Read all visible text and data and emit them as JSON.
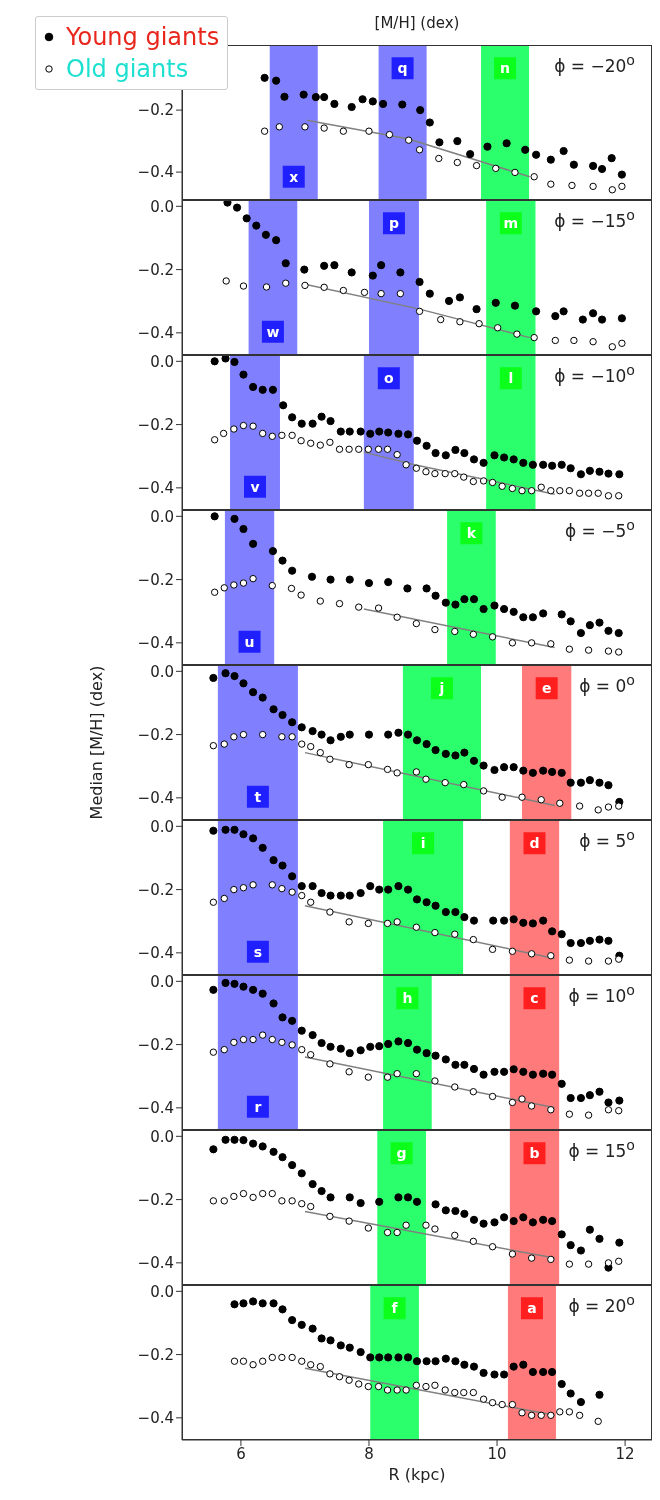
{
  "chart_data": [
    {
      "type": "scatter",
      "title": "[M/H] (dex)",
      "legend": "top left",
      "marker": "circle",
      "xlim": [
        5.08,
        12.42
      ],
      "xticks": [
        6,
        8,
        10,
        12
      ],
      "ylim": [
        -0.49,
        0.01
      ],
      "yticks": [
        {
          "value": -0.2,
          "label": "−0.2"
        },
        {
          "value": -0.4,
          "label": "−0.4"
        }
      ],
      "tick_labels": "y",
      "annotations": [
        "ϕ = −20$^{o}$"
      ],
      "bands": [
        {
          "axis": "x",
          "from": 6.45,
          "to": 7.2,
          "label": "x",
          "color": "#8080ff"
        },
        {
          "axis": "x",
          "from": 8.15,
          "to": 8.9,
          "label": "q",
          "color": "#8080ff"
        },
        {
          "axis": "x",
          "from": 9.75,
          "to": 10.5,
          "label": "n",
          "color": "#2bff6b"
        }
      ],
      "series": [
        {
          "name": "Young giants",
          "type": "scatter",
          "color": "#000000",
          "x": [
            6.37,
            6.55,
            6.68,
            6.98,
            7.17,
            7.3,
            7.46,
            7.73,
            7.9,
            8.06,
            8.22,
            8.52,
            8.8,
            8.95,
            9.1,
            9.38,
            9.58,
            9.85,
            10.15,
            10.44,
            10.61,
            10.84,
            11.04,
            11.2,
            11.5,
            11.64,
            11.79,
            11.95
          ],
          "values": [
            -0.096,
            -0.105,
            -0.157,
            -0.15,
            -0.158,
            -0.158,
            -0.18,
            -0.19,
            -0.165,
            -0.172,
            -0.18,
            -0.182,
            -0.2,
            -0.24,
            -0.304,
            -0.3,
            -0.342,
            -0.318,
            -0.307,
            -0.328,
            -0.344,
            -0.36,
            -0.332,
            -0.376,
            -0.38,
            -0.39,
            -0.355,
            -0.408
          ]
        },
        {
          "name": "Old giants",
          "type": "scatter",
          "color": "#000000",
          "x": [
            6.37,
            6.6,
            7.0,
            7.3,
            7.6,
            8.0,
            8.32,
            8.62,
            8.79,
            9.09,
            9.38,
            9.68,
            9.98,
            10.28,
            10.58,
            10.84,
            11.17,
            11.5,
            11.8,
            11.95
          ],
          "values": [
            -0.268,
            -0.254,
            -0.254,
            -0.258,
            -0.268,
            -0.268,
            -0.279,
            -0.297,
            -0.328,
            -0.356,
            -0.369,
            -0.379,
            -0.388,
            -0.401,
            -0.415,
            -0.439,
            -0.443,
            -0.446,
            -0.457,
            -0.446
          ]
        },
        {
          "type": "line",
          "marker": "none",
          "color": "#808080",
          "x": [
            7.03,
            8.62,
            10.51
          ],
          "values": [
            -0.233,
            -0.293,
            -0.415
          ]
        }
      ]
    },
    {
      "type": "scatter",
      "marker": "circle",
      "xlim": [
        5.08,
        12.42
      ],
      "xticks": [
        6,
        8,
        10,
        12
      ],
      "ylim": [
        -0.47,
        0.02
      ],
      "yticks": [
        {
          "value": 0,
          "label": "0.0"
        },
        {
          "value": -0.2,
          "label": "−0.2"
        },
        {
          "value": -0.4,
          "label": "−0.4"
        }
      ],
      "tick_labels": "y",
      "annotations": [
        "ϕ = −15$^{o}$"
      ],
      "bands": [
        {
          "axis": "x",
          "from": 6.12,
          "to": 6.88,
          "label": "w",
          "color": "#8080ff"
        },
        {
          "axis": "x",
          "from": 8.0,
          "to": 8.78,
          "label": "p",
          "color": "#8080ff"
        },
        {
          "axis": "x",
          "from": 9.83,
          "to": 10.6,
          "label": "m",
          "color": "#2bff6b"
        }
      ],
      "series": [
        {
          "type": "scatter",
          "color": "#000000",
          "x": [
            5.79,
            5.94,
            6.09,
            6.24,
            6.39,
            6.55,
            6.7,
            6.99,
            7.3,
            7.46,
            7.73,
            8.06,
            8.19,
            8.49,
            8.79,
            8.95,
            9.25,
            9.42,
            9.68,
            9.98,
            10.28,
            10.61,
            10.91,
            11.04,
            11.34,
            11.5,
            11.64,
            11.95
          ],
          "values": [
            0.012,
            -0.004,
            -0.038,
            -0.061,
            -0.09,
            -0.107,
            -0.18,
            -0.2,
            -0.188,
            -0.186,
            -0.209,
            -0.219,
            -0.186,
            -0.209,
            -0.239,
            -0.276,
            -0.299,
            -0.288,
            -0.325,
            -0.305,
            -0.314,
            -0.332,
            -0.347,
            -0.332,
            -0.358,
            -0.338,
            -0.358,
            -0.354
          ]
        },
        {
          "type": "scatter",
          "color": "#000000",
          "x": [
            5.77,
            6.04,
            6.4,
            6.7,
            7.0,
            7.3,
            7.6,
            7.93,
            8.19,
            8.49,
            8.79,
            9.12,
            9.42,
            9.72,
            10.01,
            10.31,
            10.58,
            10.91,
            11.2,
            11.5,
            11.8,
            11.95
          ],
          "values": [
            -0.236,
            -0.252,
            -0.255,
            -0.243,
            -0.25,
            -0.256,
            -0.266,
            -0.272,
            -0.276,
            -0.276,
            -0.332,
            -0.358,
            -0.365,
            -0.371,
            -0.384,
            -0.404,
            -0.415,
            -0.424,
            -0.424,
            -0.428,
            -0.444,
            -0.433
          ]
        },
        {
          "type": "line",
          "marker": "none",
          "color": "#808080",
          "x": [
            7.0,
            8.79,
            10.51
          ],
          "values": [
            -0.246,
            -0.325,
            -0.415
          ]
        }
      ]
    },
    {
      "type": "scatter",
      "marker": "circle",
      "xlim": [
        5.08,
        12.42
      ],
      "xticks": [
        6,
        8,
        10,
        12
      ],
      "ylim": [
        -0.47,
        0.02
      ],
      "yticks": [
        {
          "value": 0,
          "label": "0.0"
        },
        {
          "value": -0.2,
          "label": "−0.2"
        },
        {
          "value": -0.4,
          "label": "−0.4"
        }
      ],
      "tick_labels": "y",
      "annotations": [
        "ϕ = −10$^{o}$"
      ],
      "bands": [
        {
          "axis": "x",
          "from": 5.83,
          "to": 6.61,
          "label": "v",
          "color": "#8080ff"
        },
        {
          "axis": "x",
          "from": 7.92,
          "to": 8.7,
          "label": "o",
          "color": "#8080ff"
        },
        {
          "axis": "x",
          "from": 9.83,
          "to": 10.6,
          "label": "l",
          "color": "#2bff6b"
        }
      ],
      "series": [
        {
          "type": "scatter",
          "color": "#000000",
          "x": [
            5.59,
            5.76,
            5.9,
            6.04,
            6.19,
            6.34,
            6.5,
            6.66,
            6.8,
            6.95,
            7.12,
            7.26,
            7.4,
            7.56,
            7.7,
            7.87,
            8.02,
            8.16,
            8.3,
            8.46,
            8.61,
            8.75,
            8.9,
            9.04,
            9.2,
            9.35,
            9.49,
            9.64,
            9.79,
            9.96,
            10.11,
            10.26,
            10.41,
            10.56,
            10.72,
            10.86,
            11.01,
            11.15,
            11.31,
            11.45,
            11.6,
            11.74,
            11.91
          ],
          "values": [
            0.0,
            0.009,
            -0.002,
            -0.042,
            -0.081,
            -0.09,
            -0.09,
            -0.139,
            -0.177,
            -0.197,
            -0.197,
            -0.175,
            -0.189,
            -0.222,
            -0.222,
            -0.222,
            -0.229,
            -0.222,
            -0.225,
            -0.229,
            -0.231,
            -0.251,
            -0.267,
            -0.29,
            -0.297,
            -0.28,
            -0.29,
            -0.31,
            -0.321,
            -0.297,
            -0.304,
            -0.31,
            -0.321,
            -0.327,
            -0.327,
            -0.33,
            -0.327,
            -0.338,
            -0.357,
            -0.346,
            -0.349,
            -0.355,
            -0.357
          ]
        },
        {
          "type": "scatter",
          "color": "#000000",
          "x": [
            5.59,
            5.73,
            5.89,
            6.04,
            6.19,
            6.34,
            6.49,
            6.64,
            6.8,
            6.94,
            7.09,
            7.24,
            7.39,
            7.54,
            7.69,
            7.84,
            7.99,
            8.15,
            8.29,
            8.44,
            8.58,
            8.74,
            8.89,
            9.03,
            9.19,
            9.34,
            9.48,
            9.63,
            9.79,
            9.93,
            10.08,
            10.24,
            10.39,
            10.54,
            10.69,
            10.84,
            10.98,
            11.13,
            11.29,
            11.43,
            11.58,
            11.74,
            11.9
          ],
          "values": [
            -0.248,
            -0.228,
            -0.214,
            -0.203,
            -0.205,
            -0.228,
            -0.237,
            -0.234,
            -0.234,
            -0.251,
            -0.259,
            -0.265,
            -0.256,
            -0.278,
            -0.278,
            -0.278,
            -0.278,
            -0.278,
            -0.278,
            -0.295,
            -0.327,
            -0.338,
            -0.349,
            -0.355,
            -0.355,
            -0.355,
            -0.366,
            -0.38,
            -0.378,
            -0.383,
            -0.395,
            -0.402,
            -0.409,
            -0.409,
            -0.398,
            -0.409,
            -0.409,
            -0.409,
            -0.417,
            -0.417,
            -0.417,
            -0.425,
            -0.425
          ]
        },
        {
          "type": "line",
          "marker": "none",
          "color": "#808080",
          "x": [
            7.92,
            8.71,
            10.9
          ],
          "values": [
            -0.287,
            -0.327,
            -0.42
          ]
        }
      ]
    },
    {
      "type": "scatter",
      "marker": "circle",
      "xlim": [
        5.08,
        12.42
      ],
      "xticks": [
        6,
        8,
        10,
        12
      ],
      "ylim": [
        -0.47,
        0.02
      ],
      "yticks": [
        {
          "value": 0,
          "label": "0.0"
        },
        {
          "value": -0.2,
          "label": "−0.2"
        },
        {
          "value": -0.4,
          "label": "−0.4"
        }
      ],
      "tick_labels": "y",
      "annotations": [
        "ϕ = −5$^{o}$"
      ],
      "bands": [
        {
          "axis": "x",
          "from": 5.75,
          "to": 6.52,
          "label": "u",
          "color": "#8080ff"
        },
        {
          "axis": "x",
          "from": 9.22,
          "to": 9.98,
          "label": "k",
          "color": "#2bff6b"
        }
      ],
      "series": [
        {
          "type": "scatter",
          "color": "#000000",
          "x": [
            5.59,
            5.9,
            6.04,
            6.19,
            6.5,
            6.65,
            6.8,
            7.11,
            7.4,
            7.7,
            8.0,
            8.3,
            8.6,
            8.9,
            9.04,
            9.2,
            9.35,
            9.49,
            9.64,
            9.79,
            9.96,
            10.11,
            10.26,
            10.41,
            10.56,
            10.72,
            11.01,
            11.15,
            11.31,
            11.45,
            11.6,
            11.74,
            11.9
          ],
          "values": [
            0.0,
            -0.008,
            -0.04,
            -0.087,
            -0.11,
            -0.14,
            -0.172,
            -0.191,
            -0.2,
            -0.2,
            -0.211,
            -0.208,
            -0.228,
            -0.228,
            -0.251,
            -0.273,
            -0.279,
            -0.262,
            -0.262,
            -0.293,
            -0.282,
            -0.293,
            -0.302,
            -0.319,
            -0.319,
            -0.307,
            -0.31,
            -0.332,
            -0.369,
            -0.344,
            -0.336,
            -0.362,
            -0.369
          ]
        },
        {
          "type": "scatter",
          "color": "#000000",
          "x": [
            5.59,
            5.74,
            5.89,
            6.04,
            6.19,
            6.49,
            6.79,
            6.94,
            7.24,
            7.54,
            7.84,
            8.15,
            8.44,
            8.74,
            9.03,
            9.34,
            9.63,
            9.93,
            10.24,
            10.54,
            10.84,
            11.13,
            11.43,
            11.74,
            11.9
          ],
          "values": [
            -0.24,
            -0.226,
            -0.217,
            -0.211,
            -0.197,
            -0.219,
            -0.228,
            -0.249,
            -0.268,
            -0.276,
            -0.287,
            -0.29,
            -0.319,
            -0.339,
            -0.358,
            -0.364,
            -0.373,
            -0.381,
            -0.4,
            -0.4,
            -0.403,
            -0.42,
            -0.423,
            -0.426,
            -0.429
          ]
        },
        {
          "type": "line",
          "marker": "none",
          "color": "#808080",
          "x": [
            7.92,
            10.9
          ],
          "values": [
            -0.293,
            -0.415
          ]
        }
      ]
    },
    {
      "type": "scatter",
      "ylabel": "Median [M/H] (dex)",
      "marker": "circle",
      "xlim": [
        5.08,
        12.42
      ],
      "xticks": [
        6,
        8,
        10,
        12
      ],
      "ylim": [
        -0.47,
        0.02
      ],
      "yticks": [
        {
          "value": 0,
          "label": "0.0"
        },
        {
          "value": -0.2,
          "label": "−0.2"
        },
        {
          "value": -0.4,
          "label": "−0.4"
        }
      ],
      "tick_labels": "y",
      "annotations": [
        "ϕ = 0$^{o}$"
      ],
      "bands": [
        {
          "axis": "x",
          "from": 5.64,
          "to": 6.89,
          "label": "t",
          "color": "#8080ff"
        },
        {
          "axis": "x",
          "from": 8.53,
          "to": 9.75,
          "label": "j",
          "color": "#2bff6b"
        },
        {
          "axis": "x",
          "from": 10.39,
          "to": 11.16,
          "label": "e",
          "color": "#ff7a7a"
        }
      ],
      "series": [
        {
          "type": "scatter",
          "color": "#000000",
          "x": [
            5.57,
            5.76,
            5.9,
            6.04,
            6.19,
            6.34,
            6.51,
            6.65,
            6.8,
            6.95,
            7.12,
            7.26,
            7.4,
            7.56,
            7.7,
            8.0,
            8.3,
            8.46,
            8.61,
            8.75,
            8.9,
            9.04,
            9.2,
            9.35,
            9.49,
            9.64,
            9.79,
            9.96,
            10.11,
            10.26,
            10.41,
            10.56,
            10.72,
            10.86,
            11.01,
            11.15,
            11.31,
            11.45,
            11.6,
            11.74,
            11.91
          ],
          "values": [
            -0.021,
            -0.006,
            -0.015,
            -0.038,
            -0.066,
            -0.083,
            -0.12,
            -0.138,
            -0.161,
            -0.177,
            -0.189,
            -0.2,
            -0.218,
            -0.207,
            -0.2,
            -0.2,
            -0.2,
            -0.194,
            -0.2,
            -0.218,
            -0.23,
            -0.249,
            -0.261,
            -0.266,
            -0.257,
            -0.283,
            -0.298,
            -0.312,
            -0.303,
            -0.303,
            -0.314,
            -0.321,
            -0.314,
            -0.318,
            -0.321,
            -0.352,
            -0.352,
            -0.344,
            -0.352,
            -0.36,
            -0.413
          ]
        },
        {
          "type": "scatter",
          "color": "#000000",
          "x": [
            5.57,
            5.74,
            5.89,
            6.04,
            6.34,
            6.64,
            6.8,
            6.95,
            7.09,
            7.24,
            7.39,
            7.69,
            7.99,
            8.29,
            8.44,
            8.74,
            8.89,
            9.19,
            9.48,
            9.79,
            10.08,
            10.39,
            10.69,
            10.98,
            11.29,
            11.58,
            11.74,
            11.9
          ],
          "values": [
            -0.235,
            -0.23,
            -0.207,
            -0.2,
            -0.2,
            -0.207,
            -0.207,
            -0.23,
            -0.238,
            -0.257,
            -0.278,
            -0.295,
            -0.295,
            -0.31,
            -0.321,
            -0.318,
            -0.341,
            -0.352,
            -0.358,
            -0.378,
            -0.398,
            -0.398,
            -0.406,
            -0.417,
            -0.426,
            -0.438,
            -0.429,
            -0.426
          ]
        },
        {
          "type": "line",
          "marker": "none",
          "color": "#808080",
          "x": [
            7.0,
            10.9
          ],
          "values": [
            -0.257,
            -0.424
          ]
        }
      ]
    },
    {
      "type": "scatter",
      "marker": "circle",
      "xlim": [
        5.08,
        12.42
      ],
      "xticks": [
        6,
        8,
        10,
        12
      ],
      "ylim": [
        -0.47,
        0.02
      ],
      "yticks": [
        {
          "value": 0,
          "label": "0.0"
        },
        {
          "value": -0.2,
          "label": "−0.2"
        },
        {
          "value": -0.4,
          "label": "−0.4"
        }
      ],
      "tick_labels": "y",
      "annotations": [
        "ϕ = 5$^{o}$"
      ],
      "bands": [
        {
          "axis": "x",
          "from": 5.64,
          "to": 6.89,
          "label": "s",
          "color": "#8080ff"
        },
        {
          "axis": "x",
          "from": 8.22,
          "to": 9.47,
          "label": "i",
          "color": "#2bff6b"
        },
        {
          "axis": "x",
          "from": 10.2,
          "to": 10.97,
          "label": "d",
          "color": "#ff7a7a"
        }
      ],
      "series": [
        {
          "type": "scatter",
          "color": "#000000",
          "x": [
            5.57,
            5.76,
            5.9,
            6.04,
            6.19,
            6.34,
            6.51,
            6.65,
            6.8,
            6.95,
            7.12,
            7.26,
            7.4,
            7.56,
            7.7,
            7.87,
            8.02,
            8.16,
            8.3,
            8.46,
            8.61,
            8.75,
            8.9,
            9.04,
            9.2,
            9.35,
            9.49,
            9.64,
            9.94,
            10.11,
            10.26,
            10.41,
            10.56,
            10.72,
            10.86,
            11.01,
            11.15,
            11.31,
            11.45,
            11.6,
            11.74,
            11.91
          ],
          "values": [
            -0.014,
            -0.011,
            -0.011,
            -0.025,
            -0.038,
            -0.068,
            -0.107,
            -0.124,
            -0.158,
            -0.189,
            -0.189,
            -0.211,
            -0.219,
            -0.219,
            -0.219,
            -0.211,
            -0.189,
            -0.2,
            -0.2,
            -0.189,
            -0.2,
            -0.231,
            -0.24,
            -0.251,
            -0.271,
            -0.271,
            -0.287,
            -0.298,
            -0.298,
            -0.298,
            -0.294,
            -0.305,
            -0.307,
            -0.298,
            -0.332,
            -0.341,
            -0.369,
            -0.369,
            -0.362,
            -0.358,
            -0.362,
            -0.409
          ]
        },
        {
          "type": "scatter",
          "color": "#000000",
          "x": [
            5.57,
            5.74,
            5.89,
            6.04,
            6.19,
            6.49,
            6.64,
            6.8,
            6.95,
            7.09,
            7.39,
            7.69,
            7.99,
            8.29,
            8.44,
            8.74,
            9.03,
            9.34,
            9.63,
            9.93,
            10.24,
            10.54,
            10.84,
            11.13,
            11.43,
            11.74,
            11.9
          ],
          "values": [
            -0.24,
            -0.228,
            -0.2,
            -0.194,
            -0.185,
            -0.185,
            -0.197,
            -0.208,
            -0.219,
            -0.24,
            -0.271,
            -0.302,
            -0.307,
            -0.307,
            -0.302,
            -0.319,
            -0.336,
            -0.341,
            -0.358,
            -0.389,
            -0.395,
            -0.403,
            -0.409,
            -0.423,
            -0.426,
            -0.426,
            -0.42
          ]
        },
        {
          "type": "line",
          "marker": "none",
          "color": "#808080",
          "x": [
            7.0,
            10.9
          ],
          "values": [
            -0.251,
            -0.418
          ]
        }
      ]
    },
    {
      "type": "scatter",
      "marker": "circle",
      "xlim": [
        5.08,
        12.42
      ],
      "xticks": [
        6,
        8,
        10,
        12
      ],
      "ylim": [
        -0.47,
        0.02
      ],
      "yticks": [
        {
          "value": 0,
          "label": "0.0"
        },
        {
          "value": -0.2,
          "label": "−0.2"
        },
        {
          "value": -0.4,
          "label": "−0.4"
        }
      ],
      "tick_labels": "y",
      "annotations": [
        "ϕ = 10$^{o}$"
      ],
      "bands": [
        {
          "axis": "x",
          "from": 5.64,
          "to": 6.89,
          "label": "r",
          "color": "#8080ff"
        },
        {
          "axis": "x",
          "from": 8.22,
          "to": 8.98,
          "label": "h",
          "color": "#2bff6b"
        },
        {
          "axis": "x",
          "from": 10.2,
          "to": 10.97,
          "label": "c",
          "color": "#ff7a7a"
        }
      ],
      "series": [
        {
          "type": "scatter",
          "color": "#000000",
          "x": [
            5.57,
            5.76,
            5.9,
            6.04,
            6.19,
            6.34,
            6.51,
            6.65,
            6.8,
            6.95,
            7.12,
            7.26,
            7.4,
            7.56,
            7.7,
            7.87,
            8.02,
            8.16,
            8.3,
            8.46,
            8.61,
            8.75,
            8.9,
            9.04,
            9.2,
            9.35,
            9.49,
            9.64,
            9.79,
            9.96,
            10.11,
            10.26,
            10.41,
            10.56,
            10.72,
            10.86,
            11.01,
            11.15,
            11.31,
            11.45,
            11.6,
            11.74,
            11.91
          ],
          "values": [
            -0.027,
            -0.005,
            -0.008,
            -0.017,
            -0.027,
            -0.039,
            -0.07,
            -0.114,
            -0.125,
            -0.156,
            -0.17,
            -0.195,
            -0.207,
            -0.213,
            -0.227,
            -0.218,
            -0.207,
            -0.205,
            -0.198,
            -0.19,
            -0.195,
            -0.216,
            -0.227,
            -0.235,
            -0.247,
            -0.264,
            -0.264,
            -0.277,
            -0.295,
            -0.286,
            -0.286,
            -0.278,
            -0.286,
            -0.295,
            -0.292,
            -0.295,
            -0.324,
            -0.369,
            -0.369,
            -0.36,
            -0.349,
            -0.383,
            -0.377
          ]
        },
        {
          "type": "scatter",
          "color": "#000000",
          "x": [
            5.57,
            5.74,
            5.89,
            6.04,
            6.19,
            6.34,
            6.49,
            6.64,
            6.8,
            6.95,
            7.09,
            7.39,
            7.69,
            7.99,
            8.29,
            8.44,
            8.74,
            9.03,
            9.34,
            9.63,
            9.93,
            10.24,
            10.39,
            10.54,
            10.84,
            11.13,
            11.43,
            11.74,
            11.9
          ],
          "values": [
            -0.224,
            -0.216,
            -0.193,
            -0.184,
            -0.184,
            -0.17,
            -0.184,
            -0.193,
            -0.201,
            -0.216,
            -0.232,
            -0.261,
            -0.286,
            -0.303,
            -0.303,
            -0.292,
            -0.292,
            -0.315,
            -0.334,
            -0.349,
            -0.364,
            -0.383,
            -0.372,
            -0.394,
            -0.406,
            -0.42,
            -0.423,
            -0.406,
            -0.409
          ]
        },
        {
          "type": "line",
          "marker": "none",
          "color": "#808080",
          "x": [
            7.0,
            10.9
          ],
          "values": [
            -0.239,
            -0.4
          ]
        }
      ]
    },
    {
      "type": "scatter",
      "marker": "circle",
      "xlim": [
        5.08,
        12.42
      ],
      "xticks": [
        6,
        8,
        10,
        12
      ],
      "ylim": [
        -0.47,
        0.02
      ],
      "yticks": [
        {
          "value": 0,
          "label": "0.0"
        },
        {
          "value": -0.2,
          "label": "−0.2"
        },
        {
          "value": -0.4,
          "label": "−0.4"
        }
      ],
      "tick_labels": "y",
      "annotations": [
        "ϕ = 15$^{o}$"
      ],
      "bands": [
        {
          "axis": "x",
          "from": 8.13,
          "to": 8.89,
          "label": "g",
          "color": "#2bff6b"
        },
        {
          "axis": "x",
          "from": 10.2,
          "to": 10.97,
          "label": "b",
          "color": "#ff7a7a"
        }
      ],
      "series": [
        {
          "type": "scatter",
          "color": "#000000",
          "x": [
            5.57,
            5.76,
            5.9,
            6.04,
            6.19,
            6.34,
            6.51,
            6.65,
            6.8,
            6.95,
            7.12,
            7.26,
            7.4,
            7.7,
            7.87,
            8.16,
            8.46,
            8.61,
            8.75,
            9.04,
            9.2,
            9.35,
            9.49,
            9.64,
            9.79,
            9.96,
            10.11,
            10.26,
            10.41,
            10.56,
            10.72,
            10.86,
            11.01,
            11.15,
            11.31,
            11.45,
            11.6,
            11.74,
            11.91
          ],
          "values": [
            -0.041,
            -0.011,
            -0.011,
            -0.012,
            -0.023,
            -0.032,
            -0.049,
            -0.066,
            -0.091,
            -0.117,
            -0.151,
            -0.173,
            -0.193,
            -0.193,
            -0.211,
            -0.207,
            -0.193,
            -0.193,
            -0.207,
            -0.215,
            -0.234,
            -0.236,
            -0.245,
            -0.264,
            -0.276,
            -0.272,
            -0.256,
            -0.268,
            -0.256,
            -0.272,
            -0.264,
            -0.268,
            -0.31,
            -0.344,
            -0.361,
            -0.295,
            -0.324,
            -0.415,
            -0.336
          ]
        },
        {
          "type": "scatter",
          "color": "#000000",
          "x": [
            5.57,
            5.74,
            5.89,
            6.04,
            6.19,
            6.34,
            6.49,
            6.64,
            6.8,
            6.95,
            7.09,
            7.39,
            7.69,
            7.99,
            8.29,
            8.44,
            8.58,
            8.89,
            9.03,
            9.34,
            9.63,
            9.93,
            10.24,
            10.54,
            10.84,
            11.13,
            11.43,
            11.74,
            11.9
          ],
          "values": [
            -0.204,
            -0.204,
            -0.19,
            -0.181,
            -0.193,
            -0.181,
            -0.181,
            -0.204,
            -0.204,
            -0.213,
            -0.222,
            -0.253,
            -0.268,
            -0.29,
            -0.304,
            -0.304,
            -0.281,
            -0.281,
            -0.293,
            -0.313,
            -0.332,
            -0.349,
            -0.372,
            -0.385,
            -0.389,
            -0.404,
            -0.404,
            -0.4,
            -0.395
          ]
        },
        {
          "type": "line",
          "marker": "none",
          "color": "#808080",
          "x": [
            7.0,
            10.9
          ],
          "values": [
            -0.238,
            -0.385
          ]
        }
      ]
    },
    {
      "type": "scatter",
      "xlabel": "R (kpc)",
      "marker": "circle",
      "xlim": [
        5.08,
        12.42
      ],
      "xticks": [
        6,
        8,
        10,
        12
      ],
      "ylim": [
        -0.47,
        0.02
      ],
      "yticks": [
        {
          "value": 0,
          "label": "0.0"
        },
        {
          "value": -0.2,
          "label": "−0.2"
        },
        {
          "value": -0.4,
          "label": "−0.4"
        }
      ],
      "annotations": [
        "ϕ = 20$^{o}$"
      ],
      "bands": [
        {
          "axis": "x",
          "from": 8.02,
          "to": 8.78,
          "label": "f",
          "color": "#2bff6b"
        },
        {
          "axis": "x",
          "from": 10.17,
          "to": 10.92,
          "label": "a",
          "color": "#ff7a7a"
        }
      ],
      "series": [
        {
          "type": "scatter",
          "color": "#000000",
          "x": [
            5.9,
            6.04,
            6.19,
            6.34,
            6.51,
            6.65,
            6.8,
            6.95,
            7.12,
            7.26,
            7.4,
            7.56,
            7.7,
            7.87,
            8.02,
            8.16,
            8.3,
            8.46,
            8.61,
            8.75,
            8.9,
            9.04,
            9.2,
            9.35,
            9.49,
            9.64,
            9.79,
            9.96,
            10.11,
            10.26,
            10.41,
            10.56,
            10.72,
            10.86,
            11.01,
            11.15,
            11.31,
            11.6
          ],
          "values": [
            -0.041,
            -0.038,
            -0.032,
            -0.038,
            -0.038,
            -0.057,
            -0.091,
            -0.106,
            -0.118,
            -0.149,
            -0.155,
            -0.171,
            -0.178,
            -0.192,
            -0.209,
            -0.209,
            -0.209,
            -0.209,
            -0.209,
            -0.221,
            -0.221,
            -0.221,
            -0.213,
            -0.221,
            -0.232,
            -0.238,
            -0.258,
            -0.263,
            -0.263,
            -0.238,
            -0.232,
            -0.255,
            -0.255,
            -0.255,
            -0.293,
            -0.323,
            -0.35,
            -0.327
          ]
        },
        {
          "type": "scatter",
          "color": "#000000",
          "x": [
            5.9,
            6.04,
            6.19,
            6.34,
            6.49,
            6.64,
            6.8,
            6.95,
            7.09,
            7.24,
            7.39,
            7.54,
            7.69,
            7.84,
            7.99,
            8.15,
            8.29,
            8.44,
            8.58,
            8.74,
            8.89,
            9.03,
            9.19,
            9.34,
            9.48,
            9.63,
            9.79,
            9.93,
            10.08,
            10.24,
            10.39,
            10.54,
            10.69,
            10.84,
            10.98,
            11.13,
            11.29,
            11.58
          ],
          "values": [
            -0.221,
            -0.221,
            -0.232,
            -0.221,
            -0.209,
            -0.209,
            -0.209,
            -0.221,
            -0.232,
            -0.238,
            -0.261,
            -0.27,
            -0.281,
            -0.293,
            -0.301,
            -0.301,
            -0.312,
            -0.312,
            -0.312,
            -0.297,
            -0.301,
            -0.297,
            -0.312,
            -0.32,
            -0.32,
            -0.32,
            -0.341,
            -0.352,
            -0.358,
            -0.358,
            -0.384,
            -0.392,
            -0.392,
            -0.392,
            -0.381,
            -0.381,
            -0.392,
            -0.411
          ]
        },
        {
          "type": "line",
          "marker": "none",
          "color": "#808080",
          "x": [
            7.0,
            10.9
          ],
          "values": [
            -0.243,
            -0.392
          ]
        }
      ]
    }
  ]
}
